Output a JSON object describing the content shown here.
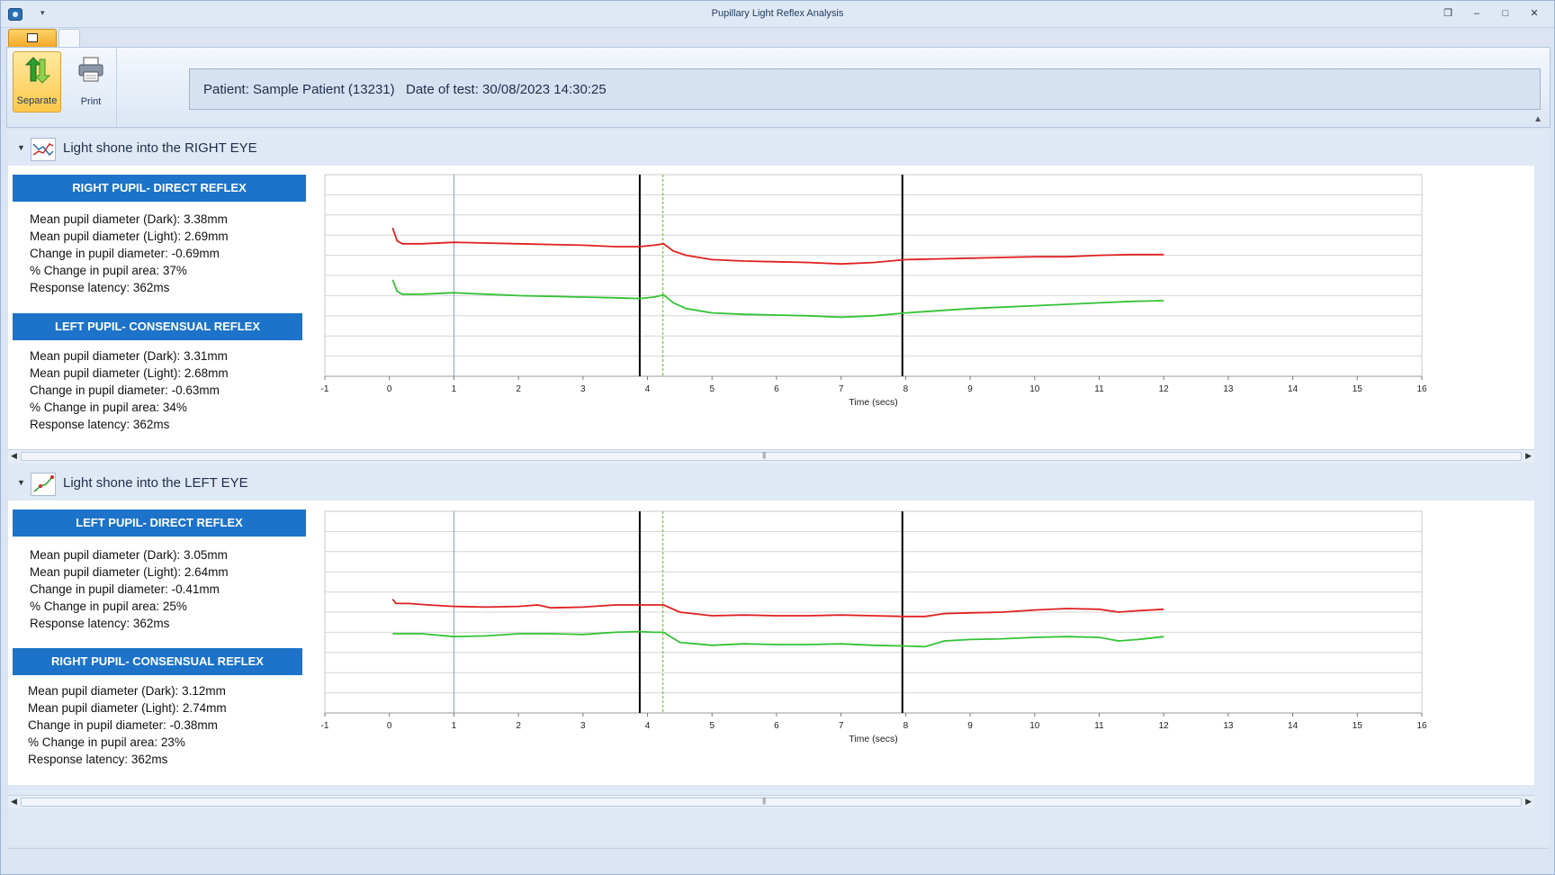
{
  "window": {
    "title": "Pupillary Light Reflex Analysis",
    "controls": [
      "restore-icon",
      "minimize-icon",
      "maximize-icon",
      "close-icon"
    ]
  },
  "ribbon": {
    "separate_label": "Separate",
    "print_label": "Print"
  },
  "patient": {
    "name_text": "Patient: Sample Patient (13231)",
    "date_text": "Date of test: 30/08/2023 14:30:25"
  },
  "sections": [
    {
      "header": "Light shone into the RIGHT EYE",
      "blocks": [
        {
          "title": "RIGHT PUPIL- DIRECT REFLEX",
          "lines": [
            "Mean pupil diameter (Dark): 3.38mm",
            "Mean pupil diameter (Light): 2.69mm",
            "Change in pupil diameter: -0.69mm",
            "% Change in pupil area: 37%",
            "Response latency: 362ms"
          ]
        },
        {
          "title": "LEFT PUPIL- CONSENSUAL REFLEX",
          "lines": [
            "Mean pupil diameter (Dark): 3.31mm",
            "Mean pupil diameter (Light): 2.68mm",
            "Change in pupil diameter: -0.63mm",
            "% Change in pupil area: 34%",
            "Response latency: 362ms"
          ]
        }
      ],
      "chart": {
        "xlabel": "Time (secs)",
        "x_ticks": [
          "-1",
          "0",
          "1",
          "2",
          "3",
          "4",
          "5",
          "6",
          "7",
          "8",
          "9",
          "10",
          "11",
          "12",
          "13",
          "14",
          "15",
          "16"
        ]
      }
    },
    {
      "header": "Light shone into the LEFT EYE",
      "blocks": [
        {
          "title": "LEFT PUPIL- DIRECT REFLEX",
          "lines": [
            "Mean pupil diameter (Dark): 3.05mm",
            "Mean pupil diameter (Light): 2.64mm",
            "Change in pupil diameter: -0.41mm",
            "% Change in pupil area: 25%",
            "Response latency: 362ms"
          ]
        },
        {
          "title": "RIGHT PUPIL- CONSENSUAL REFLEX",
          "lines": [
            "Mean pupil diameter (Dark): 3.12mm",
            "Mean pupil diameter (Light): 2.74mm",
            "Change in pupil diameter: -0.38mm",
            "% Change in pupil area: 23%",
            "Response latency: 362ms"
          ]
        }
      ],
      "chart": {
        "xlabel": "Time (secs)",
        "x_ticks": [
          "-1",
          "0",
          "1",
          "2",
          "3",
          "4",
          "5",
          "6",
          "7",
          "8",
          "9",
          "10",
          "11",
          "12",
          "13",
          "14",
          "15",
          "16"
        ]
      }
    }
  ],
  "chart_data": [
    {
      "type": "line",
      "title": "",
      "xlabel": "Time (secs)",
      "ylabel": "",
      "xlim": [
        -1,
        16
      ],
      "grid": true,
      "markers": [
        {
          "x": 1.0,
          "color": "#7f9cc7",
          "style": "solid"
        },
        {
          "x": 3.88,
          "color": "#000000",
          "style": "solid"
        },
        {
          "x": 4.24,
          "color": "#6fa832",
          "style": "dashed"
        },
        {
          "x": 7.95,
          "color": "#000000",
          "style": "solid"
        }
      ],
      "series": [
        {
          "color": "#e02020",
          "x": [
            0.05,
            0.12,
            0.2,
            0.5,
            1.0,
            1.5,
            2.0,
            2.5,
            3.0,
            3.5,
            3.88,
            4.1,
            4.25,
            4.4,
            4.6,
            4.8,
            5.0,
            5.5,
            6.0,
            6.5,
            7.0,
            7.5,
            8.0,
            8.5,
            9.0,
            9.5,
            10.0,
            10.5,
            11.0,
            11.5,
            12.0
          ],
          "y": [
            0.58,
            0.49,
            0.47,
            0.47,
            0.48,
            0.475,
            0.47,
            0.465,
            0.46,
            0.45,
            0.45,
            0.46,
            0.47,
            0.42,
            0.39,
            0.375,
            0.36,
            0.35,
            0.345,
            0.34,
            0.33,
            0.34,
            0.36,
            0.365,
            0.37,
            0.375,
            0.38,
            0.38,
            0.39,
            0.395,
            0.395
          ]
        },
        {
          "color": "#33c233",
          "x": [
            0.05,
            0.12,
            0.2,
            0.5,
            1.0,
            1.5,
            2.0,
            2.5,
            3.0,
            3.5,
            3.88,
            4.1,
            4.25,
            4.4,
            4.6,
            4.8,
            5.0,
            5.5,
            6.0,
            6.5,
            7.0,
            7.5,
            8.0,
            8.5,
            9.0,
            9.5,
            10.0,
            10.5,
            11.0,
            11.5,
            12.0
          ],
          "y": [
            0.22,
            0.14,
            0.12,
            0.12,
            0.13,
            0.12,
            0.11,
            0.105,
            0.1,
            0.095,
            0.09,
            0.1,
            0.115,
            0.06,
            0.02,
            0.005,
            -0.01,
            -0.02,
            -0.025,
            -0.03,
            -0.04,
            -0.03,
            -0.01,
            0.005,
            0.02,
            0.03,
            0.04,
            0.05,
            0.06,
            0.07,
            0.075
          ]
        }
      ]
    },
    {
      "type": "line",
      "title": "",
      "xlabel": "Time (secs)",
      "ylabel": "",
      "xlim": [
        -1,
        16
      ],
      "grid": true,
      "markers": [
        {
          "x": 1.0,
          "color": "#7f9cc7",
          "style": "solid"
        },
        {
          "x": 3.88,
          "color": "#000000",
          "style": "solid"
        },
        {
          "x": 4.24,
          "color": "#6fa832",
          "style": "dashed"
        },
        {
          "x": 7.95,
          "color": "#000000",
          "style": "solid"
        }
      ],
      "series": [
        {
          "color": "#e02020",
          "x": [
            0.05,
            0.1,
            0.3,
            0.6,
            1.0,
            1.5,
            2.0,
            2.3,
            2.5,
            3.0,
            3.5,
            3.88,
            4.1,
            4.25,
            4.5,
            5.0,
            5.5,
            6.0,
            6.5,
            7.0,
            7.5,
            8.0,
            8.3,
            8.6,
            9.0,
            9.5,
            10.0,
            10.5,
            11.0,
            11.3,
            11.6,
            12.0
          ],
          "y": [
            0.34,
            0.31,
            0.31,
            0.3,
            0.29,
            0.285,
            0.29,
            0.3,
            0.28,
            0.285,
            0.3,
            0.3,
            0.3,
            0.3,
            0.25,
            0.225,
            0.23,
            0.225,
            0.225,
            0.23,
            0.225,
            0.22,
            0.22,
            0.24,
            0.245,
            0.25,
            0.265,
            0.275,
            0.27,
            0.25,
            0.26,
            0.27
          ]
        },
        {
          "color": "#33c233",
          "x": [
            0.05,
            0.5,
            1.0,
            1.5,
            2.0,
            2.5,
            3.0,
            3.5,
            3.88,
            4.1,
            4.25,
            4.5,
            5.0,
            5.5,
            6.0,
            6.5,
            7.0,
            7.5,
            8.0,
            8.3,
            8.6,
            9.0,
            9.5,
            10.0,
            10.5,
            11.0,
            11.3,
            11.6,
            12.0
          ],
          "y": [
            0.1,
            0.1,
            0.08,
            0.085,
            0.1,
            0.1,
            0.095,
            0.11,
            0.115,
            0.11,
            0.11,
            0.04,
            0.02,
            0.03,
            0.025,
            0.025,
            0.03,
            0.02,
            0.015,
            0.01,
            0.05,
            0.06,
            0.065,
            0.075,
            0.08,
            0.075,
            0.05,
            0.06,
            0.08
          ]
        }
      ]
    }
  ]
}
